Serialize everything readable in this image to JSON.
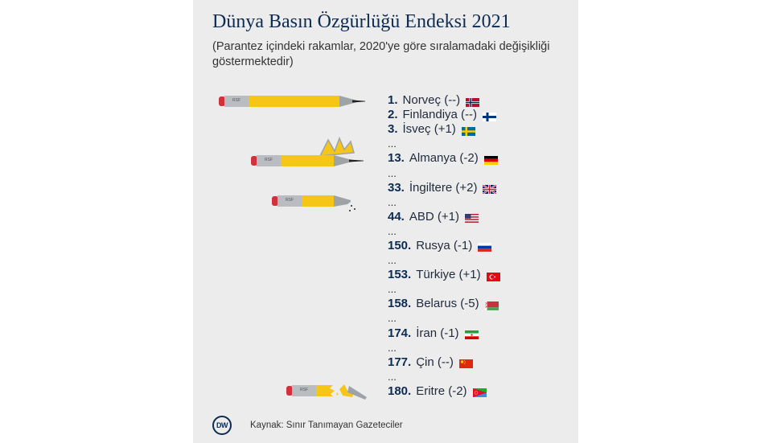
{
  "title": "Dünya Basın Özgürlüğü Endeksi 2021",
  "subtitle": "(Parantez içindeki rakamlar, 2020'ye göre sıralamadaki değişikliği göstermektedir)",
  "pencil_label": "RSF",
  "rows": [
    {
      "rank": "1.",
      "text": "Norveç (--)",
      "flag": "norway-flag-icon"
    },
    {
      "rank": "2.",
      "text": "Finlandiya (--)",
      "flag": "finland-flag-icon"
    },
    {
      "rank": "3.",
      "text": "İsveç (+1)",
      "flag": "sweden-flag-icon"
    },
    {
      "dots": "..."
    },
    {
      "rank": "13.",
      "text": "Almanya (-2)",
      "flag": "germany-flag-icon"
    },
    {
      "dots": "..."
    },
    {
      "rank": "33.",
      "text": "İngiltere (+2)",
      "flag": "uk-flag-icon"
    },
    {
      "dots": "..."
    },
    {
      "rank": "44.",
      "text": "ABD (+1)",
      "flag": "usa-flag-icon"
    },
    {
      "dots": "..."
    },
    {
      "rank": "150.",
      "text": "Rusya (-1)",
      "flag": "russia-flag-icon"
    },
    {
      "dots": "..."
    },
    {
      "rank": "153.",
      "text": "Türkiye (+1)",
      "flag": "turkey-flag-icon"
    },
    {
      "dots": "..."
    },
    {
      "rank": "158.",
      "text": "Belarus (-5)",
      "flag": "belarus-flag-icon"
    },
    {
      "dots": "..."
    },
    {
      "rank": "174.",
      "text": "İran (-1)",
      "flag": "iran-flag-icon"
    },
    {
      "dots": "..."
    },
    {
      "rank": "177.",
      "text": "Çin (--)",
      "flag": "china-flag-icon"
    },
    {
      "dots": "..."
    },
    {
      "rank": "180.",
      "text": "Eritre (-2)",
      "flag": "eritrea-flag-icon"
    }
  ],
  "footer": {
    "logo": "DW",
    "source": "Kaynak: Sınır Tanımayan Gazeteciler"
  },
  "colors": {
    "navy": "#0c2b52",
    "pencil_yellow": "#f5c518",
    "eraser_red": "#d1303c",
    "ferrule_gray": "#b9bcc0",
    "tip_gray": "#9ea3a8",
    "background": "#ececec"
  }
}
